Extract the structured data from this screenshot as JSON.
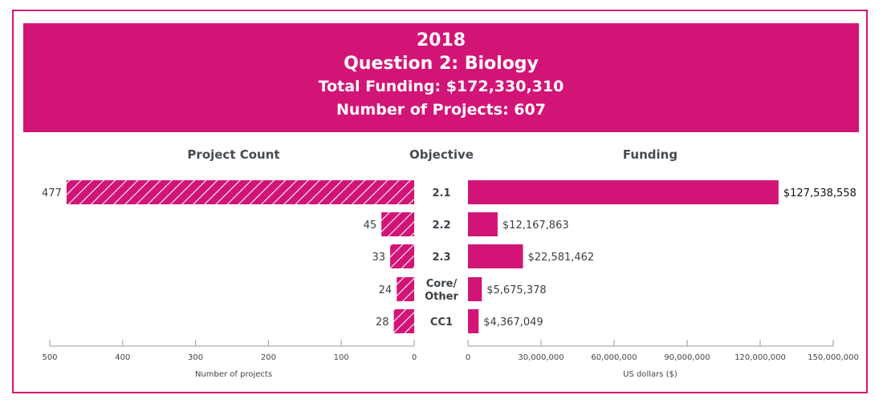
{
  "banner": {
    "year": "2018",
    "title": "Question 2: Biology",
    "total_funding": "Total Funding: $172,330,310",
    "num_projects": "Number of Projects: 607"
  },
  "colors": {
    "accent": "#d31477",
    "border": "#d4137a",
    "axis": "#999999",
    "text": "#3a3f47"
  },
  "chart_data": [
    {
      "type": "bar",
      "orientation": "horizontal",
      "direction": "right-to-left",
      "title": "Project Count",
      "pattern": "diagonal-hatch",
      "categories": [
        "2.1",
        "2.2",
        "2.3",
        "Core/Other",
        "CC1"
      ],
      "values": [
        477,
        45,
        33,
        24,
        28
      ],
      "value_labels": [
        "477",
        "45",
        "33",
        "24",
        "28"
      ],
      "xlabel": "Number of projects",
      "xlim": [
        0,
        500
      ],
      "ticks": [
        500,
        400,
        300,
        200,
        100,
        0
      ],
      "tick_labels": [
        "500",
        "400",
        "300",
        "200",
        "100",
        "0"
      ],
      "grid": false
    },
    {
      "type": "bar",
      "orientation": "horizontal",
      "direction": "left-to-right",
      "title": "Funding",
      "pattern": "solid",
      "categories": [
        "2.1",
        "2.2",
        "2.3",
        "Core/Other",
        "CC1"
      ],
      "values": [
        127538558,
        12167863,
        22581462,
        5675378,
        4367049
      ],
      "value_labels": [
        "$127,538,558",
        "$12,167,863",
        "$22,581,462",
        "$5,675,378",
        "$4,367,049"
      ],
      "xlabel": "US dollars ($)",
      "xlim": [
        0,
        150000000
      ],
      "ticks": [
        0,
        30000000,
        60000000,
        90000000,
        120000000,
        150000000
      ],
      "tick_labels": [
        "0",
        "30,000,000",
        "60,000,000",
        "90,000,000",
        "120,000,000",
        "150,000,000"
      ],
      "grid": false
    }
  ],
  "objective_header": "Objective",
  "category_display": [
    [
      "2.1"
    ],
    [
      "2.2"
    ],
    [
      "2.3"
    ],
    [
      "Core/",
      "Other"
    ],
    [
      "CC1"
    ]
  ]
}
